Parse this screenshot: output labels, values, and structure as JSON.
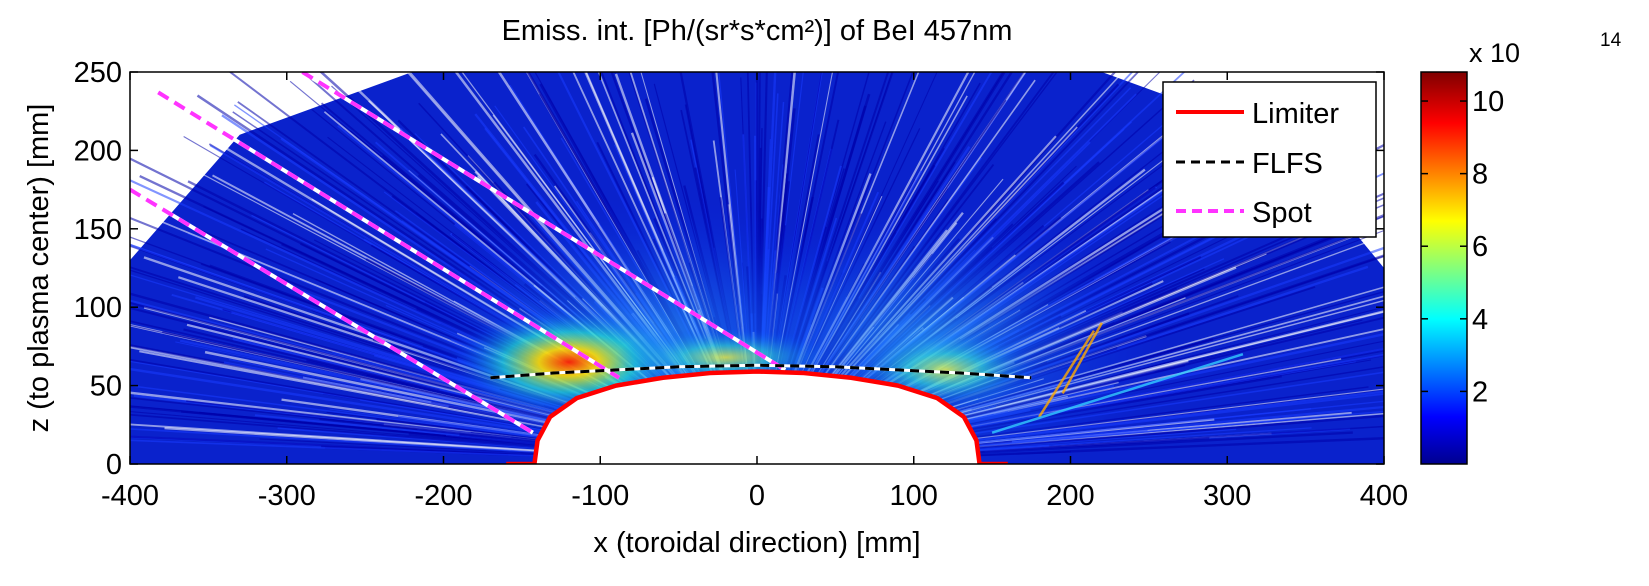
{
  "chart_data": {
    "type": "heatmap",
    "title": "Emiss. int. [Ph/(sr*s*cm²)] of BeI 457nm",
    "xlabel": "x (toroidal direction) [mm]",
    "ylabel": "z (to plasma center) [mm]",
    "xlim": [
      -400,
      400
    ],
    "ylim": [
      0,
      250
    ],
    "x_ticks": [
      "-400",
      "-300",
      "-200",
      "-100",
      "0",
      "100",
      "200",
      "300",
      "400"
    ],
    "y_ticks": [
      "0",
      "50",
      "100",
      "150",
      "200",
      "250"
    ],
    "grid": false,
    "colormap": "jet",
    "colorbar": {
      "range": [
        0,
        10.8
      ],
      "ticks": [
        "2",
        "4",
        "6",
        "8",
        "10"
      ],
      "exponent_label": "x 10",
      "exponent": "14"
    },
    "legend": {
      "position": "top-right",
      "entries": [
        {
          "name": "Limiter",
          "color": "#ff0000",
          "style": "solid"
        },
        {
          "name": "FLFS",
          "color": "#000000",
          "style": "dashed"
        },
        {
          "name": "Spot",
          "color": "#ff33ff",
          "style": "dashed"
        }
      ]
    },
    "series": [
      {
        "name": "Limiter",
        "x": [
          -160,
          -142,
          -140,
          -132,
          -115,
          -90,
          -60,
          -30,
          0,
          30,
          60,
          90,
          115,
          132,
          140,
          142,
          160
        ],
        "y": [
          0,
          0,
          15,
          30,
          42,
          50,
          55,
          58,
          59,
          58,
          55,
          50,
          42,
          30,
          15,
          0,
          0
        ]
      },
      {
        "name": "FLFS",
        "x": [
          -170,
          -130,
          -90,
          -50,
          0,
          50,
          90,
          130,
          175
        ],
        "y": [
          55,
          58,
          60,
          62,
          63,
          62,
          60,
          58,
          55
        ]
      },
      {
        "name": "Spot",
        "segments": [
          {
            "x": [
              -400,
              -143
            ],
            "y": [
              175,
              20
            ]
          },
          {
            "x": [
              -382,
              -88
            ],
            "y": [
              237,
              55
            ]
          },
          {
            "x": [
              -290,
              18
            ],
            "y": [
              250,
              60
            ]
          }
        ]
      }
    ]
  }
}
